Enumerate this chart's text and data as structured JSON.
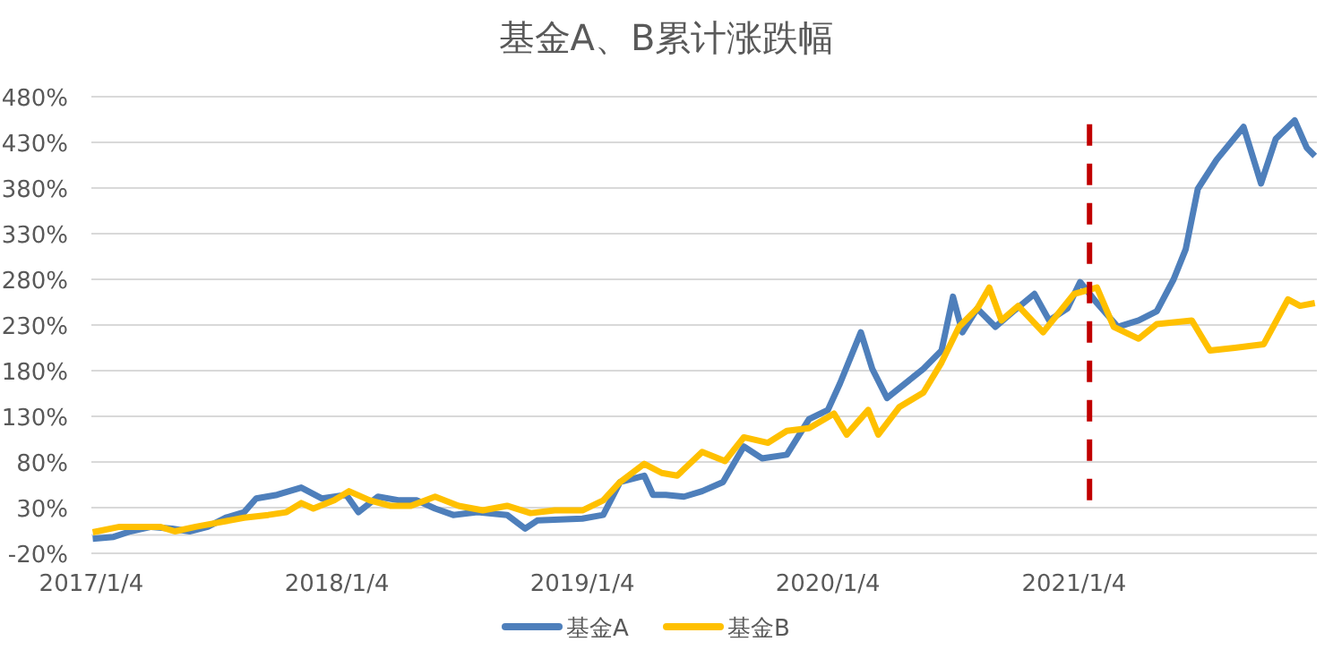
{
  "chart_data": {
    "type": "line",
    "title": "基金A、B累计涨跌幅",
    "xlim": [
      "2017-01-04",
      "2021-12-31"
    ],
    "xticks": [
      {
        "value": "2017-01-04",
        "label": "2017/1/4"
      },
      {
        "value": "2018-01-04",
        "label": "2018/1/4"
      },
      {
        "value": "2019-01-04",
        "label": "2019/1/4"
      },
      {
        "value": "2020-01-04",
        "label": "2020/1/4"
      },
      {
        "value": "2021-01-04",
        "label": "2021/1/4"
      }
    ],
    "ylim": [
      -20,
      480
    ],
    "yticks": [
      {
        "value": -20,
        "label": "-20%"
      },
      {
        "value": 30,
        "label": "30%"
      },
      {
        "value": 80,
        "label": "80%"
      },
      {
        "value": 130,
        "label": "130%"
      },
      {
        "value": 180,
        "label": "180%"
      },
      {
        "value": 230,
        "label": "230%"
      },
      {
        "value": 280,
        "label": "280%"
      },
      {
        "value": 330,
        "label": "330%"
      },
      {
        "value": 380,
        "label": "380%"
      },
      {
        "value": 430,
        "label": "430%"
      },
      {
        "value": 480,
        "label": "480%"
      }
    ],
    "grid": "y",
    "legend": "bottom",
    "marker": "none",
    "ref_lines": [
      {
        "axis": "y",
        "value": 0,
        "color": "#d9d9d9"
      }
    ],
    "series": [
      {
        "name": "基金A",
        "color": "#4e7fbb",
        "x": [
          "2017-01-06",
          "2017-02-06",
          "2017-03-03",
          "2017-04-03",
          "2017-05-04",
          "2017-05-30",
          "2017-06-26",
          "2017-07-23",
          "2017-08-19",
          "2017-09-06",
          "2017-10-07",
          "2017-11-12",
          "2017-12-13",
          "2018-01-18",
          "2018-02-05",
          "2018-03-06",
          "2018-04-07",
          "2018-05-03",
          "2018-05-30",
          "2018-06-26",
          "2018-08-01",
          "2018-09-14",
          "2018-10-11",
          "2018-10-29",
          "2019-01-04",
          "2019-02-04",
          "2019-03-01",
          "2019-04-06",
          "2019-04-19",
          "2019-05-08",
          "2019-06-04",
          "2019-07-01",
          "2019-08-01",
          "2019-09-01",
          "2019-09-28",
          "2019-11-04",
          "2019-12-07",
          "2020-01-04",
          "2020-01-22",
          "2020-02-22",
          "2020-03-10",
          "2020-04-01",
          "2020-04-28",
          "2020-05-25",
          "2020-06-21",
          "2020-07-08",
          "2020-07-22",
          "2020-08-13",
          "2020-09-09",
          "2020-10-06",
          "2020-11-06",
          "2020-11-28",
          "2020-12-25",
          "2021-01-13",
          "2021-02-07",
          "2021-03-10",
          "2021-04-10",
          "2021-05-07",
          "2021-06-01",
          "2021-06-19",
          "2021-07-07",
          "2021-08-04",
          "2021-09-13",
          "2021-10-09",
          "2021-10-31",
          "2021-11-28",
          "2021-12-16",
          "2021-12-28"
        ],
        "values": [
          -4,
          -2,
          4,
          9,
          7,
          4,
          9,
          19,
          25,
          40,
          44,
          52,
          40,
          44,
          25,
          42,
          38,
          38,
          29,
          22,
          25,
          22,
          7,
          16,
          18,
          22,
          58,
          65,
          44,
          44,
          42,
          48,
          58,
          97,
          84,
          88,
          127,
          137,
          166,
          222,
          182,
          150,
          166,
          182,
          202,
          261,
          222,
          248,
          228,
          245,
          264,
          235,
          248,
          277,
          254,
          228,
          235,
          245,
          280,
          313,
          379,
          411,
          447,
          385,
          434,
          454,
          424,
          415
        ]
      },
      {
        "name": "基金B",
        "color": "#ffc000",
        "x": [
          "2017-01-06",
          "2017-02-15",
          "2017-03-20",
          "2017-04-16",
          "2017-05-08",
          "2017-06-08",
          "2017-07-14",
          "2017-08-19",
          "2017-09-24",
          "2017-10-21",
          "2017-11-12",
          "2017-11-30",
          "2017-12-31",
          "2018-01-22",
          "2018-02-22",
          "2018-03-24",
          "2018-04-24",
          "2018-05-30",
          "2018-07-04",
          "2018-08-09",
          "2018-09-14",
          "2018-10-19",
          "2018-11-24",
          "2019-01-04",
          "2019-02-04",
          "2019-03-01",
          "2019-04-06",
          "2019-05-02",
          "2019-05-25",
          "2019-07-01",
          "2019-08-04",
          "2019-09-01",
          "2019-10-07",
          "2019-11-04",
          "2019-12-07",
          "2020-01-13",
          "2020-02-01",
          "2020-03-04",
          "2020-03-19",
          "2020-04-19",
          "2020-05-25",
          "2020-06-21",
          "2020-07-17",
          "2020-08-13",
          "2020-08-31",
          "2020-09-18",
          "2020-10-13",
          "2020-11-19",
          "2021-01-04",
          "2021-02-07",
          "2021-03-04",
          "2021-04-10",
          "2021-05-07",
          "2021-06-28",
          "2021-07-25",
          "2021-08-31",
          "2021-10-13",
          "2021-11-18",
          "2021-12-06",
          "2021-12-28"
        ],
        "values": [
          3,
          9,
          9,
          9,
          4,
          9,
          14,
          19,
          22,
          25,
          35,
          29,
          38,
          48,
          38,
          32,
          32,
          42,
          32,
          27,
          32,
          24,
          27,
          27,
          38,
          58,
          78,
          68,
          65,
          91,
          81,
          107,
          101,
          114,
          117,
          133,
          110,
          137,
          110,
          140,
          156,
          189,
          228,
          248,
          271,
          235,
          251,
          222,
          264,
          271,
          228,
          215,
          231,
          235,
          202,
          205,
          209,
          258,
          251,
          254
        ]
      },
      {
        "color": "#c00000",
        "line_style": "dashed",
        "x": [
          "2021-01-27",
          "2021-01-27"
        ],
        "values": [
          38,
          452
        ]
      }
    ]
  }
}
